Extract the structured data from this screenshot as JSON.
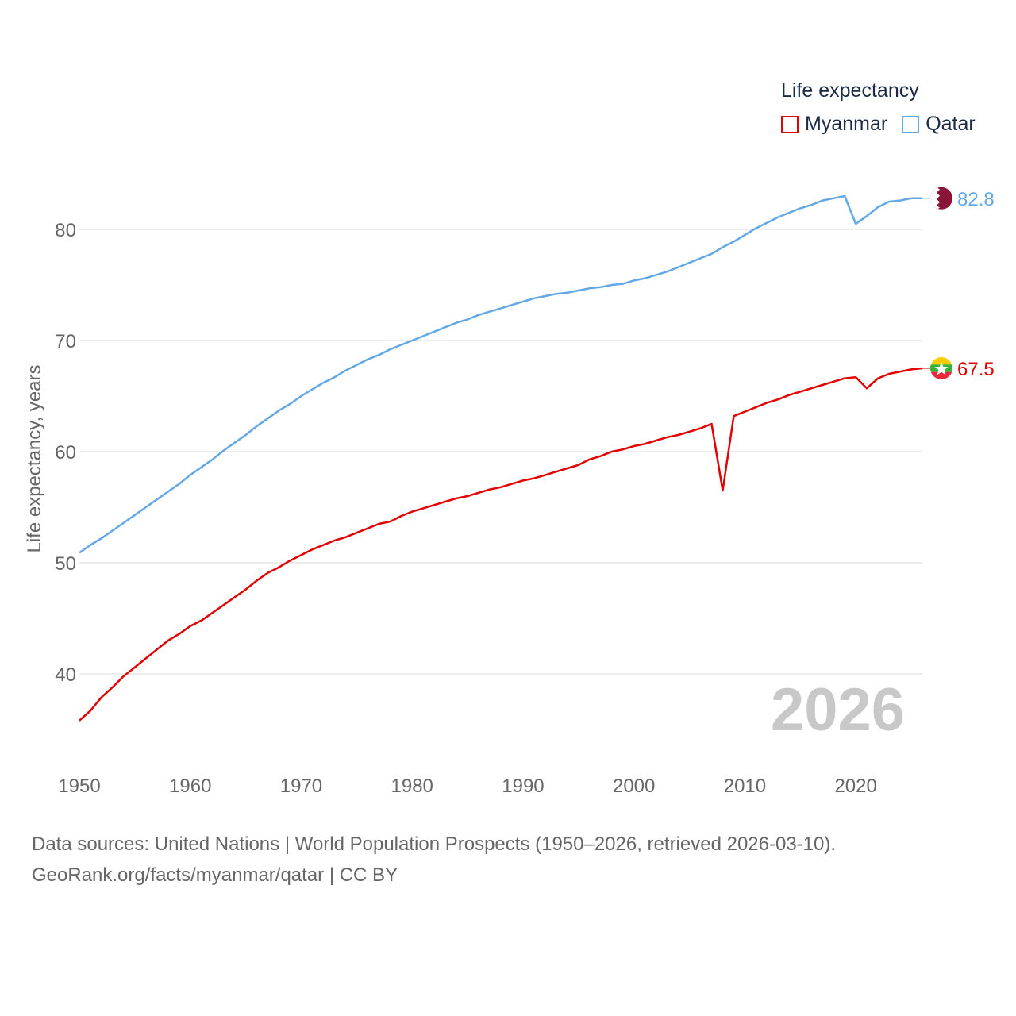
{
  "chart_data": {
    "type": "line",
    "title": "",
    "legend_title": "Life expectancy",
    "ylabel": "Life expectancy, years",
    "xlabel": "",
    "xlim": [
      1950,
      2026
    ],
    "ylim": [
      32,
      86
    ],
    "yticks": [
      "40",
      "50",
      "60",
      "70",
      "80"
    ],
    "xticks": [
      "1950",
      "1960",
      "1970",
      "1980",
      "1990",
      "2000",
      "2010",
      "2020"
    ],
    "year_label": "2026",
    "x": [
      1950,
      1951,
      1952,
      1953,
      1954,
      1955,
      1956,
      1957,
      1958,
      1959,
      1960,
      1961,
      1962,
      1963,
      1964,
      1965,
      1966,
      1967,
      1968,
      1969,
      1970,
      1971,
      1972,
      1973,
      1974,
      1975,
      1976,
      1977,
      1978,
      1979,
      1980,
      1981,
      1982,
      1983,
      1984,
      1985,
      1986,
      1987,
      1988,
      1989,
      1990,
      1991,
      1992,
      1993,
      1994,
      1995,
      1996,
      1997,
      1998,
      1999,
      2000,
      2001,
      2002,
      2003,
      2004,
      2005,
      2006,
      2007,
      2008,
      2009,
      2010,
      2011,
      2012,
      2013,
      2014,
      2015,
      2016,
      2017,
      2018,
      2019,
      2020,
      2021,
      2022,
      2023,
      2024,
      2025,
      2026
    ],
    "series": [
      {
        "name": "Myanmar",
        "color": "#e30000",
        "end_label": "67.5",
        "values": [
          35.8,
          36.7,
          37.9,
          38.8,
          39.8,
          40.6,
          41.4,
          42.2,
          43.0,
          43.6,
          44.3,
          44.8,
          45.5,
          46.2,
          46.9,
          47.6,
          48.4,
          49.1,
          49.6,
          50.2,
          50.7,
          51.2,
          51.6,
          52.0,
          52.3,
          52.7,
          53.1,
          53.5,
          53.7,
          54.2,
          54.6,
          54.9,
          55.2,
          55.5,
          55.8,
          56.0,
          56.3,
          56.6,
          56.8,
          57.1,
          57.4,
          57.6,
          57.9,
          58.2,
          58.5,
          58.8,
          59.3,
          59.6,
          60.0,
          60.2,
          60.5,
          60.7,
          61.0,
          61.3,
          61.5,
          61.8,
          62.1,
          62.5,
          56.5,
          63.2,
          63.6,
          64.0,
          64.4,
          64.7,
          65.1,
          65.4,
          65.7,
          66.0,
          66.3,
          66.6,
          66.7,
          65.7,
          66.6,
          67.0,
          67.2,
          67.4,
          67.5
        ]
      },
      {
        "name": "Qatar",
        "color": "#63a8e6",
        "end_label": "82.8",
        "values": [
          50.9,
          51.6,
          52.2,
          52.9,
          53.6,
          54.3,
          55.0,
          55.7,
          56.4,
          57.1,
          57.9,
          58.6,
          59.3,
          60.1,
          60.8,
          61.5,
          62.3,
          63.0,
          63.7,
          64.3,
          65.0,
          65.6,
          66.2,
          66.7,
          67.3,
          67.8,
          68.3,
          68.7,
          69.2,
          69.6,
          70.0,
          70.4,
          70.8,
          71.2,
          71.6,
          71.9,
          72.3,
          72.6,
          72.9,
          73.2,
          73.5,
          73.8,
          74.0,
          74.2,
          74.3,
          74.5,
          74.7,
          74.8,
          75.0,
          75.1,
          75.4,
          75.6,
          75.9,
          76.2,
          76.6,
          77.0,
          77.4,
          77.8,
          78.4,
          78.9,
          79.5,
          80.1,
          80.6,
          81.1,
          81.5,
          81.9,
          82.2,
          82.6,
          82.8,
          83.0,
          80.5,
          81.2,
          82.0,
          82.5,
          82.6,
          82.8,
          82.8
        ]
      }
    ],
    "source_lines": [
      "Data sources: United Nations | World Population Prospects (1950–2026, retrieved 2026-03-10).",
      "GeoRank.org/facts/myanmar/qatar | CC BY"
    ]
  }
}
